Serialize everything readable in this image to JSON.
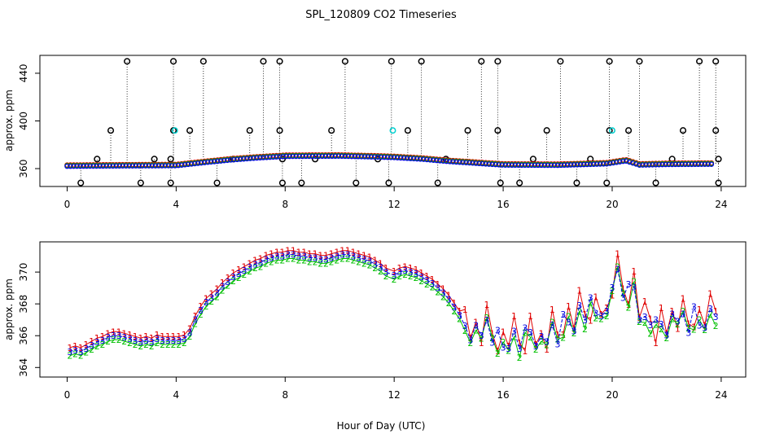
{
  "figure": {
    "title": "SPL_120809  CO2 Timeseries",
    "xlabel": "Hour of Day (UTC)"
  },
  "colors": {
    "s1": "#e00000",
    "s2": "#00c000",
    "s3": "#0000e0",
    "black": "#000000",
    "cyan": "#00d0d0"
  },
  "chart_data": [
    {
      "type": "scatter",
      "title": "SPL_120809  CO2 Timeseries",
      "xlabel": "",
      "ylabel": "approx. ppm",
      "xlim": [
        -1,
        24.9
      ],
      "ylim": [
        345,
        455
      ],
      "xticks": [
        "0",
        "4",
        "8",
        "12",
        "16",
        "20",
        "24"
      ],
      "yticks": [
        "360",
        "400",
        "440"
      ],
      "outliers_high": [
        2.2,
        3.9,
        5.0,
        7.2,
        7.8,
        10.2,
        11.9,
        13.0,
        15.2,
        15.8,
        18.1,
        19.9,
        21.0,
        23.2,
        23.8
      ],
      "outliers_low": [
        0.5,
        2.7,
        3.8,
        5.5,
        7.9,
        8.6,
        10.6,
        11.8,
        13.6,
        15.9,
        16.6,
        18.7,
        19.8,
        21.6,
        23.9
      ],
      "outliers_mid": [
        1.6,
        3.9,
        4.5,
        6.7,
        7.8,
        9.7,
        12.5,
        14.7,
        15.8,
        17.6,
        19.9,
        20.6,
        22.6,
        23.8
      ],
      "outliers_low2": [
        1.1,
        3.2,
        3.8,
        6.1,
        7.9,
        9.1,
        11.4,
        13.9,
        17.1,
        19.2,
        22.2,
        23.9
      ],
      "cyan_points": [
        [
          3.95,
          392
        ],
        [
          11.95,
          392
        ],
        [
          20.0,
          392
        ]
      ],
      "series_mean": [
        [
          0,
          362.5
        ],
        [
          2,
          362.8
        ],
        [
          4,
          363.0
        ],
        [
          5,
          365.5
        ],
        [
          6,
          367.8
        ],
        [
          7,
          369.5
        ],
        [
          8,
          370.8
        ],
        [
          10,
          371.0
        ],
        [
          11.5,
          370.2
        ],
        [
          12,
          369.8
        ],
        [
          13,
          368.5
        ],
        [
          14,
          366.5
        ],
        [
          15,
          365.0
        ],
        [
          16,
          363.5
        ],
        [
          18,
          363.3
        ],
        [
          19.8,
          364.5
        ],
        [
          20.5,
          367.0
        ],
        [
          21,
          363.5
        ],
        [
          22,
          364.0
        ],
        [
          23.6,
          364.2
        ]
      ]
    },
    {
      "type": "line",
      "title": "",
      "xlabel": "Hour of Day (UTC)",
      "ylabel": "approx. ppm",
      "xlim": [
        -1,
        24.9
      ],
      "ylim": [
        363.4,
        371.9
      ],
      "xticks": [
        "0",
        "4",
        "8",
        "12",
        "16",
        "20",
        "24"
      ],
      "yticks": [
        "364",
        "366",
        "368",
        "370"
      ],
      "series": [
        {
          "name": "1",
          "color": "#e00000",
          "offset": 0.25
        },
        {
          "name": "2",
          "color": "#00c000",
          "offset": -0.25
        },
        {
          "name": "3",
          "color": "#0000e0",
          "offset": 0.0
        }
      ],
      "x": [
        0.1,
        0.3,
        0.5,
        0.7,
        0.9,
        1.1,
        1.3,
        1.5,
        1.7,
        1.9,
        2.1,
        2.3,
        2.5,
        2.7,
        2.9,
        3.1,
        3.3,
        3.5,
        3.7,
        3.9,
        4.1,
        4.3,
        4.5,
        4.7,
        4.9,
        5.1,
        5.3,
        5.5,
        5.7,
        5.9,
        6.1,
        6.3,
        6.5,
        6.7,
        6.9,
        7.1,
        7.3,
        7.5,
        7.7,
        7.9,
        8.1,
        8.3,
        8.5,
        8.7,
        8.9,
        9.1,
        9.3,
        9.5,
        9.7,
        9.9,
        10.1,
        10.3,
        10.5,
        10.7,
        10.9,
        11.1,
        11.3,
        11.5,
        11.7,
        12.0,
        12.2,
        12.4,
        12.6,
        12.8,
        13.0,
        13.2,
        13.4,
        13.6,
        13.8,
        14.0,
        14.2,
        14.4,
        14.6,
        14.8,
        15.0,
        15.2,
        15.4,
        15.6,
        15.8,
        16.0,
        16.2,
        16.4,
        16.6,
        16.8,
        17.0,
        17.2,
        17.4,
        17.6,
        17.8,
        18.0,
        18.2,
        18.4,
        18.6,
        18.8,
        19.0,
        19.2,
        19.4,
        19.6,
        19.8,
        20.0,
        20.2,
        20.4,
        20.6,
        20.8,
        21.0,
        21.2,
        21.4,
        21.6,
        21.8,
        22.0,
        22.2,
        22.4,
        22.6,
        22.8,
        23.0,
        23.2,
        23.4,
        23.6,
        23.8
      ],
      "y": [
        365.0,
        365.1,
        365.0,
        365.2,
        365.4,
        365.6,
        365.7,
        365.9,
        366.0,
        366.0,
        365.9,
        365.8,
        365.7,
        365.6,
        365.7,
        365.6,
        365.8,
        365.7,
        365.7,
        365.7,
        365.7,
        365.8,
        366.2,
        367.0,
        367.6,
        368.1,
        368.4,
        368.7,
        369.1,
        369.4,
        369.7,
        369.9,
        370.1,
        370.3,
        370.5,
        370.6,
        370.8,
        370.9,
        371.0,
        371.0,
        371.1,
        371.1,
        371.0,
        371.0,
        370.9,
        370.9,
        370.8,
        370.8,
        370.9,
        371.0,
        371.1,
        371.1,
        371.0,
        370.9,
        370.8,
        370.7,
        370.5,
        370.3,
        370.0,
        369.8,
        370.0,
        370.1,
        370.0,
        369.9,
        369.7,
        369.5,
        369.3,
        369.0,
        368.7,
        368.3,
        367.8,
        367.3,
        366.8,
        366.4,
        366.3,
        366.5,
        366.8,
        366.3,
        365.8,
        365.5,
        365.8,
        366.0,
        365.6,
        365.9,
        366.4,
        366.0,
        365.6,
        366.1,
        366.5,
        366.2,
        366.8,
        367.1,
        366.9,
        367.6,
        367.4,
        367.8,
        367.6,
        367.9,
        367.2,
        369.5,
        370.0,
        369.1,
        368.7,
        369.3,
        367.6,
        366.9,
        367.1,
        366.4,
        366.9,
        366.7,
        367.0,
        367.4,
        367.2,
        366.9,
        367.3,
        366.9,
        367.1,
        367.4,
        367.6
      ]
    }
  ]
}
